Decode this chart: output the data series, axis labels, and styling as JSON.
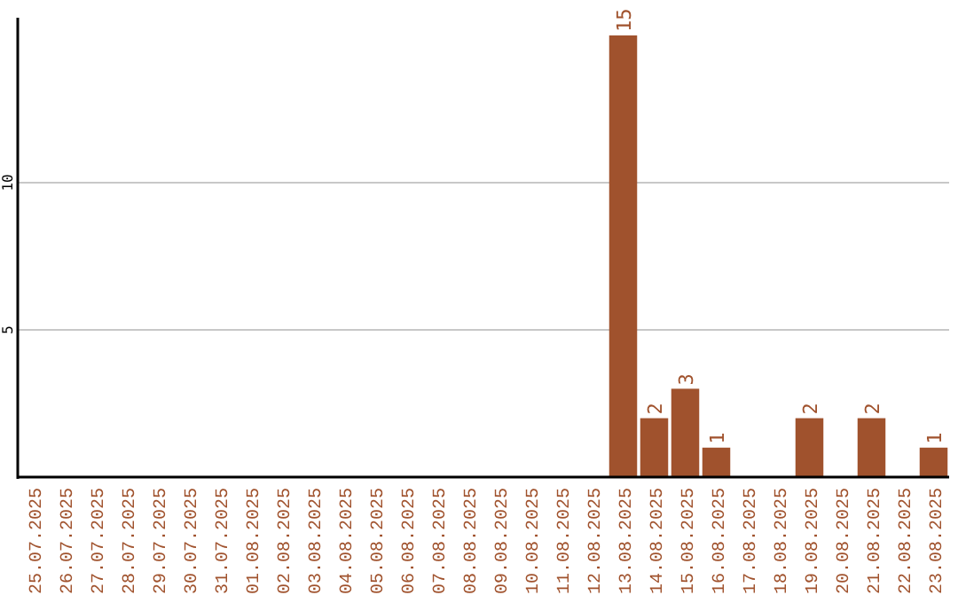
{
  "chart_data": {
    "type": "bar",
    "categories": [
      "25.07.2025",
      "26.07.2025",
      "27.07.2025",
      "28.07.2025",
      "29.07.2025",
      "30.07.2025",
      "31.07.2025",
      "01.08.2025",
      "02.08.2025",
      "03.08.2025",
      "04.08.2025",
      "05.08.2025",
      "06.08.2025",
      "07.08.2025",
      "08.08.2025",
      "09.08.2025",
      "10.08.2025",
      "11.08.2025",
      "12.08.2025",
      "13.08.2025",
      "14.08.2025",
      "15.08.2025",
      "16.08.2025",
      "17.08.2025",
      "18.08.2025",
      "19.08.2025",
      "20.08.2025",
      "21.08.2025",
      "22.08.2025",
      "23.08.2025"
    ],
    "values": [
      0,
      0,
      0,
      0,
      0,
      0,
      0,
      0,
      0,
      0,
      0,
      0,
      0,
      0,
      0,
      0,
      0,
      0,
      0,
      15,
      2,
      3,
      1,
      0,
      0,
      2,
      0,
      2,
      0,
      1
    ],
    "value_labels": [
      null,
      null,
      null,
      null,
      null,
      null,
      null,
      null,
      null,
      null,
      null,
      null,
      null,
      null,
      null,
      null,
      null,
      null,
      null,
      "15",
      "2",
      "3",
      "1",
      null,
      null,
      "2",
      null,
      "2",
      null,
      "1"
    ],
    "color": "#a0522d",
    "ylim": [
      0,
      15.6
    ],
    "yticks": [
      5,
      10
    ],
    "grid": "y"
  }
}
